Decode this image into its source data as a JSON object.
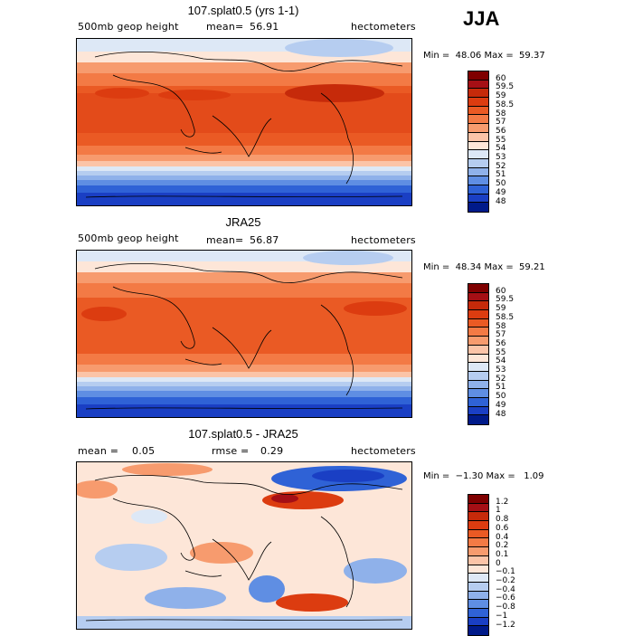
{
  "season": "JJA",
  "panels": [
    {
      "title": "107.splat0.5 (yrs 1-1)",
      "left_label": "500mb geop height",
      "mean_label": "mean=",
      "mean_value": "56.91",
      "units": "hectometers",
      "minmax": "Min =  48.06 Max =  59.37",
      "colorbar_labels": [
        "60",
        "59.5",
        "59",
        "58.5",
        "58",
        "57",
        "56",
        "55",
        "54",
        "53",
        "52",
        "51",
        "50",
        "49",
        "48"
      ]
    },
    {
      "title": "JRA25",
      "left_label": "500mb geop height",
      "mean_label": "mean=",
      "mean_value": "56.87",
      "units": "hectometers",
      "minmax": "Min =  48.34 Max =  59.21",
      "colorbar_labels": [
        "60",
        "59.5",
        "59",
        "58.5",
        "58",
        "57",
        "56",
        "55",
        "54",
        "53",
        "52",
        "51",
        "50",
        "49",
        "48"
      ]
    },
    {
      "title": "107.splat0.5 - JRA25",
      "left_label": "mean =",
      "left_value": "0.05",
      "mean_label": "rmse =",
      "mean_value": "0.29",
      "units": "hectometers",
      "minmax": "Min =  −1.30 Max =   1.09",
      "colorbar_labels": [
        "1.2",
        "1",
        "0.8",
        "0.6",
        "0.4",
        "0.2",
        "0.1",
        "0",
        "−0.1",
        "−0.2",
        "−0.4",
        "−0.6",
        "−0.8",
        "−1",
        "−1.2"
      ]
    }
  ],
  "colors": {
    "scale": [
      "#7f0000",
      "#a50f15",
      "#c62a0a",
      "#dc3c10",
      "#ea5a24",
      "#f37a45",
      "#f79b6e",
      "#fbc4a8",
      "#fde6d8",
      "#dde8f6",
      "#b6cdf0",
      "#8fb1ea",
      "#5f8ee3",
      "#2f62d6",
      "#1a3fc4",
      "#001a8a"
    ]
  },
  "chart_data": [
    {
      "type": "heatmap",
      "title": "107.splat0.5 (yrs 1-1)",
      "variable": "500mb geop height",
      "units": "hectometers",
      "mean": 56.91,
      "min": 48.06,
      "max": 59.37,
      "levels": [
        48,
        49,
        50,
        51,
        52,
        53,
        54,
        55,
        56,
        57,
        58,
        58.5,
        59,
        59.5,
        60
      ]
    },
    {
      "type": "heatmap",
      "title": "JRA25",
      "variable": "500mb geop height",
      "units": "hectometers",
      "mean": 56.87,
      "min": 48.34,
      "max": 59.21,
      "levels": [
        48,
        49,
        50,
        51,
        52,
        53,
        54,
        55,
        56,
        57,
        58,
        58.5,
        59,
        59.5,
        60
      ]
    },
    {
      "type": "heatmap",
      "title": "107.splat0.5 - JRA25",
      "units": "hectometers",
      "mean": 0.05,
      "rmse": 0.29,
      "min": -1.3,
      "max": 1.09,
      "levels": [
        -1.2,
        -1,
        -0.8,
        -0.6,
        -0.4,
        -0.2,
        -0.1,
        0,
        0.1,
        0.2,
        0.4,
        0.6,
        0.8,
        1,
        1.2
      ]
    }
  ]
}
